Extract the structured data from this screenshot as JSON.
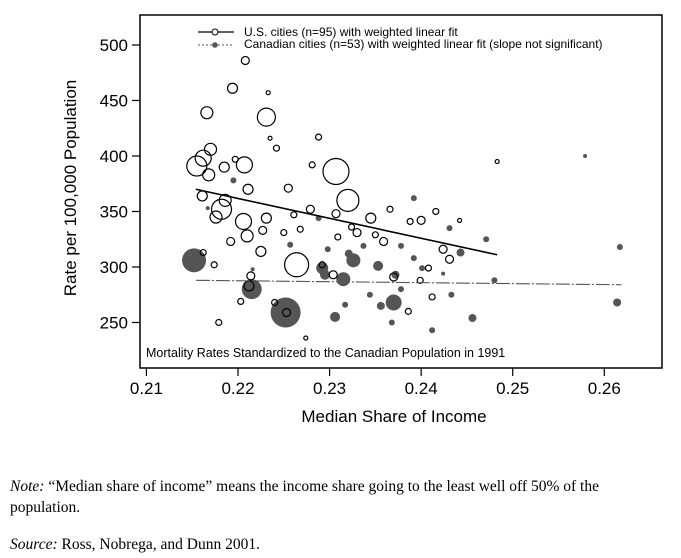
{
  "chart_data": {
    "type": "scatter",
    "xlabel": "Median Share of Income",
    "ylabel": "Rate per 100,000 Population",
    "xlim": [
      0.2093,
      0.2663
    ],
    "ylim": [
      209,
      527
    ],
    "xticks": [
      "0.21",
      "0.22",
      "0.23",
      "0.24",
      "0.25",
      "0.26"
    ],
    "xtick_values": [
      0.21,
      0.22,
      0.23,
      0.24,
      0.25,
      0.26
    ],
    "yticks": [
      "250",
      "300",
      "350",
      "400",
      "450",
      "500"
    ],
    "ytick_values": [
      250,
      300,
      350,
      400,
      450,
      500
    ],
    "annotation": "Mortality Rates Standardized to the Canadian Population in 1991",
    "legend_position": "top",
    "series": [
      {
        "name": "U.S. cities (n=95) with weighted linear fit",
        "marker": "open-circle",
        "color": "#000000",
        "fit": [
          [
            0.2154,
            370
          ],
          [
            0.2483,
            311
          ]
        ],
        "points_xy_relsize": [
          [
            0.2208,
            486,
            4
          ],
          [
            0.2194,
            461,
            5
          ],
          [
            0.2166,
            439,
            6
          ],
          [
            0.2231,
            435,
            9
          ],
          [
            0.2233,
            457,
            2
          ],
          [
            0.2288,
            417,
            3
          ],
          [
            0.2235,
            416,
            2
          ],
          [
            0.2242,
            407,
            3
          ],
          [
            0.2281,
            392,
            3
          ],
          [
            0.2307,
            386,
            13
          ],
          [
            0.2162,
            398,
            8
          ],
          [
            0.217,
            406,
            6
          ],
          [
            0.2185,
            390,
            5
          ],
          [
            0.2155,
            391,
            10
          ],
          [
            0.2207,
            392,
            8
          ],
          [
            0.2197,
            397,
            3
          ],
          [
            0.2211,
            370,
            5
          ],
          [
            0.2255,
            371,
            4
          ],
          [
            0.2168,
            383,
            6
          ],
          [
            0.2161,
            364,
            5
          ],
          [
            0.232,
            360,
            11
          ],
          [
            0.2186,
            360,
            6
          ],
          [
            0.2182,
            352,
            10
          ],
          [
            0.2176,
            345,
            6
          ],
          [
            0.2206,
            341,
            8
          ],
          [
            0.221,
            328,
            6
          ],
          [
            0.2231,
            344,
            5
          ],
          [
            0.2227,
            333,
            4
          ],
          [
            0.2192,
            323,
            4
          ],
          [
            0.2225,
            314,
            5
          ],
          [
            0.225,
            331,
            3
          ],
          [
            0.2268,
            334,
            3
          ],
          [
            0.2279,
            352,
            4
          ],
          [
            0.2307,
            348,
            4
          ],
          [
            0.233,
            331,
            4
          ],
          [
            0.2345,
            344,
            5
          ],
          [
            0.2359,
            323,
            4
          ],
          [
            0.24,
            342,
            4
          ],
          [
            0.2424,
            316,
            4
          ],
          [
            0.2431,
            307,
            4
          ],
          [
            0.2416,
            350,
            3
          ],
          [
            0.237,
            291,
            4
          ],
          [
            0.2399,
            288,
            3
          ],
          [
            0.2408,
            299,
            3
          ],
          [
            0.2304,
            293,
            4
          ],
          [
            0.2264,
            302,
            12
          ],
          [
            0.2292,
            302,
            3
          ],
          [
            0.2214,
            292,
            4
          ],
          [
            0.2212,
            283,
            5
          ],
          [
            0.2174,
            302,
            3
          ],
          [
            0.2203,
            269,
            3
          ],
          [
            0.2253,
            259,
            4
          ],
          [
            0.2274,
            236,
            2
          ],
          [
            0.2179,
            250,
            3
          ],
          [
            0.224,
            268,
            3
          ],
          [
            0.2386,
            260,
            3
          ],
          [
            0.2412,
            273,
            3
          ],
          [
            0.2442,
            342,
            2
          ],
          [
            0.2483,
            395,
            2
          ],
          [
            0.2162,
            313,
            3
          ],
          [
            0.2309,
            327,
            3
          ],
          [
            0.2324,
            336,
            3
          ],
          [
            0.235,
            329,
            3
          ],
          [
            0.2366,
            352,
            3
          ],
          [
            0.2388,
            341,
            3
          ],
          [
            0.2261,
            347,
            3
          ]
        ]
      },
      {
        "name": "Canadian cities (n=53) with weighted linear fit (slope not significant)",
        "marker": "filled-circle",
        "color": "#555555",
        "fit": [
          [
            0.2154,
            288
          ],
          [
            0.2619,
            284
          ]
        ],
        "points_xy_relsize": [
          [
            0.2152,
            306,
            12
          ],
          [
            0.2252,
            259,
            15
          ],
          [
            0.2215,
            280,
            10
          ],
          [
            0.2167,
            353,
            2
          ],
          [
            0.2195,
            378,
            3
          ],
          [
            0.2257,
            320,
            3
          ],
          [
            0.2288,
            344,
            3
          ],
          [
            0.2298,
            316,
            3
          ],
          [
            0.2292,
            299,
            6
          ],
          [
            0.2321,
            312,
            4
          ],
          [
            0.2326,
            306,
            7
          ],
          [
            0.2315,
            289,
            7
          ],
          [
            0.2295,
            293,
            5
          ],
          [
            0.2306,
            255,
            5
          ],
          [
            0.2353,
            301,
            5
          ],
          [
            0.2344,
            275,
            3
          ],
          [
            0.237,
            268,
            8
          ],
          [
            0.2356,
            265,
            4
          ],
          [
            0.2368,
            250,
            3
          ],
          [
            0.2372,
            293,
            4
          ],
          [
            0.2378,
            280,
            3
          ],
          [
            0.2392,
            308,
            3
          ],
          [
            0.2392,
            362,
            3
          ],
          [
            0.2431,
            335,
            3
          ],
          [
            0.2443,
            313,
            4
          ],
          [
            0.2401,
            299,
            3
          ],
          [
            0.2433,
            275,
            3
          ],
          [
            0.2471,
            325,
            3
          ],
          [
            0.2456,
            254,
            4
          ],
          [
            0.248,
            288,
            3
          ],
          [
            0.2412,
            243,
            3
          ],
          [
            0.2579,
            400,
            2
          ],
          [
            0.2617,
            318,
            3
          ],
          [
            0.2614,
            268,
            4
          ],
          [
            0.2337,
            319,
            3
          ],
          [
            0.2317,
            266,
            3
          ],
          [
            0.2424,
            294,
            2
          ],
          [
            0.2378,
            319,
            3
          ],
          [
            0.2216,
            298,
            2
          ]
        ]
      }
    ]
  },
  "notes": {
    "note_label": "Note:",
    "note_text": " “Median share of income” means the income share going to the least well off 50% of the population.",
    "source_label": "Source:",
    "source_text": " Ross, Nobrega, and Dunn 2001."
  }
}
